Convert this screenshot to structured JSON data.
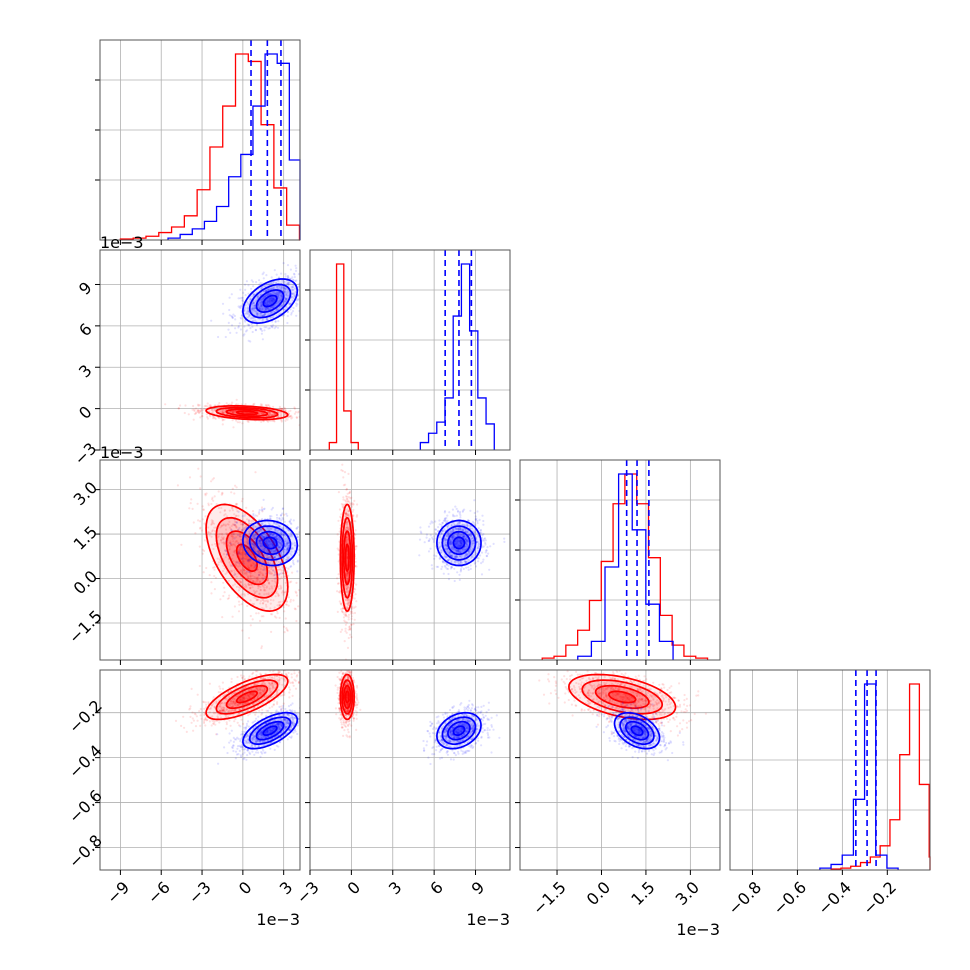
{
  "colors": {
    "series_a": "#ff0000",
    "series_b": "#0000ff",
    "grid": "#b0b0b0",
    "axes": "#000000"
  },
  "chart_data": {
    "type": "corner",
    "grid": true,
    "parameters": [
      {
        "offset_text": "1e−3",
        "range": [
          -10.5,
          4.2
        ],
        "ticks": [
          -9,
          -6,
          -3,
          0,
          3
        ],
        "tick_labels": [
          "−9",
          "−6",
          "−3",
          "0",
          "3"
        ]
      },
      {
        "offset_text": "1e−3",
        "range": [
          -3.0,
          11.5
        ],
        "ticks": [
          -3,
          0,
          3,
          6,
          9
        ],
        "tick_labels": [
          "−3",
          "0",
          "3",
          "6",
          "9"
        ]
      },
      {
        "offset_text": "1e−3",
        "range": [
          -2.75,
          4.0
        ],
        "ticks": [
          -1.5,
          0.0,
          1.5,
          3.0
        ],
        "tick_labels": [
          "−1.5",
          "0.0",
          "1.5",
          "3.0"
        ]
      },
      {
        "offset_text": "",
        "range": [
          -0.9,
          -0.01
        ],
        "ticks": [
          -0.8,
          -0.6,
          -0.4,
          -0.2
        ],
        "tick_labels": [
          "−0.8",
          "−0.6",
          "−0.4",
          "−0.2"
        ]
      }
    ],
    "series": [
      {
        "color": "#ff0000",
        "means": [
          0.3,
          -0.3,
          0.7,
          -0.13
        ],
        "stds": [
          1.5,
          0.25,
          0.9,
          0.05
        ],
        "quantiles": [],
        "hist": [
          [
            0.005,
            0.01,
            0.02,
            0.04,
            0.07,
            0.13,
            0.27,
            0.5,
            0.72,
            1.0,
            0.96,
            0.62,
            0.28,
            0.08,
            0.0
          ],
          [
            0.04,
            1.0,
            0.21,
            0.04
          ],
          [
            0.01,
            0.02,
            0.08,
            0.16,
            0.32,
            0.53,
            0.84,
            1.0,
            0.84,
            0.55,
            0.24,
            0.08,
            0.02,
            0.01
          ],
          [
            0.005,
            0.01,
            0.02,
            0.04,
            0.07,
            0.13,
            0.27,
            0.62,
            1.0,
            0.46,
            0.07
          ]
        ],
        "hist_start": [
          -9.0,
          -1.6,
          -2.0,
          -0.45
        ]
      },
      {
        "color": "#0000ff",
        "means": [
          2.0,
          7.8,
          1.2,
          -0.28
        ],
        "stds": [
          1.0,
          0.8,
          0.38,
          0.04
        ],
        "quantiles": [
          [
            0.6,
            1.8,
            2.8
          ],
          [
            6.8,
            7.8,
            8.7
          ],
          [
            0.85,
            1.2,
            1.6
          ],
          [
            -0.34,
            -0.29,
            -0.25
          ]
        ],
        "hist": [
          [
            0.01,
            0.03,
            0.06,
            0.1,
            0.18,
            0.34,
            0.46,
            0.72,
            1.0,
            0.95,
            0.43,
            0.06
          ],
          [
            0.04,
            0.09,
            0.15,
            0.28,
            0.72,
            1.0,
            0.64,
            0.28,
            0.14
          ],
          [
            0.02,
            0.1,
            0.5,
            1.0,
            0.7,
            0.3,
            0.1
          ],
          [
            0.01,
            0.03,
            0.08,
            0.38,
            1.0,
            0.08,
            0.01
          ]
        ],
        "hist_start": [
          -5.5,
          5.0,
          -0.8,
          -0.5
        ]
      }
    ]
  }
}
